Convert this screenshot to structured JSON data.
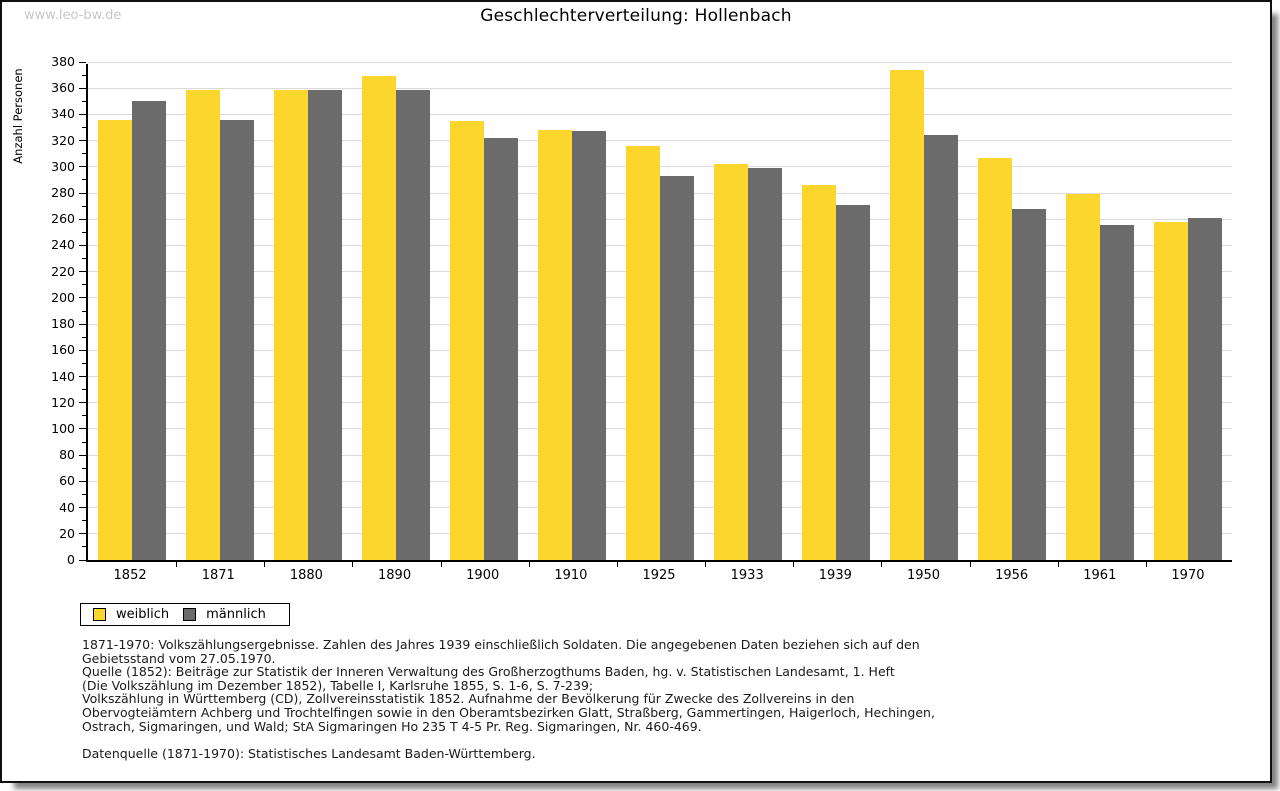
{
  "page": {
    "watermark": "www.leo-bw.de"
  },
  "chart_data": {
    "type": "bar",
    "title": "Geschlechterverteilung: Hollenbach",
    "xlabel": "",
    "ylabel": "Anzahl Personen",
    "categories": [
      "1852",
      "1871",
      "1880",
      "1890",
      "1900",
      "1910",
      "1925",
      "1933",
      "1939",
      "1950",
      "1956",
      "1961",
      "1970"
    ],
    "series": [
      {
        "name": "weiblich",
        "color": "#fcd62c",
        "values": [
          336,
          359,
          359,
          369,
          335,
          328,
          316,
          302,
          286,
          374,
          307,
          279,
          258
        ]
      },
      {
        "name": "männlich",
        "color": "#6b6b6b",
        "values": [
          350,
          336,
          359,
          359,
          322,
          327,
          293,
          299,
          271,
          324,
          268,
          256,
          261
        ]
      }
    ],
    "ylim": [
      0,
      380
    ],
    "ytick_step": 20,
    "minor_tick_step": 10,
    "grid": true,
    "gridline_color": "#d9d9d9",
    "legend_position": "bottom-left"
  },
  "footer": {
    "notes_lines": [
      "1871-1970: Volkszählungsergebnisse. Zahlen des Jahres 1939 einschließlich Soldaten. Die angegebenen Daten beziehen sich auf den",
      "Gebietsstand vom 27.05.1970.",
      "Quelle (1852): Beiträge zur Statistik der Inneren Verwaltung des Großherzogthums Baden, hg. v. Statistischen Landesamt, 1. Heft",
      "(Die Volkszählung im Dezember 1852), Tabelle I, Karlsruhe 1855, S. 1-6, S. 7-239;",
      "Volkszählung in Württemberg (CD), Zollvereinsstatistik 1852. Aufnahme der Bevölkerung für Zwecke des Zollvereins in den",
      "Obervogteiämtern Achberg und Trochtelfingen sowie in den Oberamtsbezirken Glatt, Straßberg, Gammertingen, Haigerloch, Hechingen,",
      "Ostrach, Sigmaringen, und Wald; StA Sigmaringen Ho 235 T 4-5 Pr. Reg. Sigmaringen, Nr. 460-469."
    ],
    "source_line": "Datenquelle (1871-1970): Statistisches Landesamt Baden-Württemberg."
  }
}
